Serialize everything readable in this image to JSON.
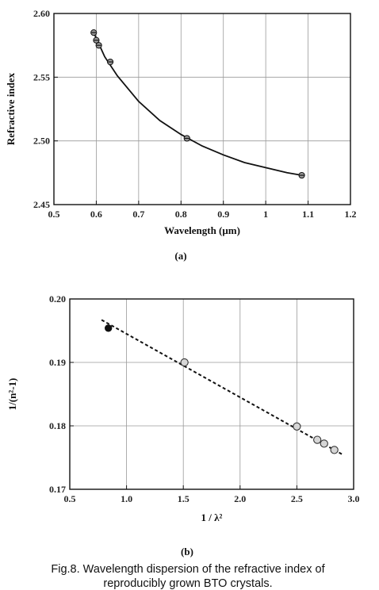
{
  "caption": {
    "line1": "Fig.8. Wavelength dispersion of the refractive index of",
    "line2": "reproducibly grown BTO crystals."
  },
  "chart_data": [
    {
      "type": "line",
      "panel_label": "(a)",
      "xlabel": "Wavelength  (μm)",
      "ylabel": "Refractive index",
      "xlim": [
        0.5,
        1.2
      ],
      "ylim": [
        2.45,
        2.6
      ],
      "x_ticks": [
        "0.5",
        "0.6",
        "0.7",
        "0.8",
        "0.9",
        "1",
        "1.1",
        "1.2"
      ],
      "y_ticks": [
        "2.45",
        "2.50",
        "2.55",
        "2.60"
      ],
      "grid": true,
      "points": [
        {
          "x": 0.594,
          "y": 2.585
        },
        {
          "x": 0.6,
          "y": 2.579
        },
        {
          "x": 0.606,
          "y": 2.575
        },
        {
          "x": 0.633,
          "y": 2.562
        },
        {
          "x": 0.814,
          "y": 2.502
        },
        {
          "x": 1.085,
          "y": 2.473
        }
      ],
      "curve": [
        {
          "x": 0.594,
          "y": 2.585
        },
        {
          "x": 0.62,
          "y": 2.566
        },
        {
          "x": 0.65,
          "y": 2.551
        },
        {
          "x": 0.7,
          "y": 2.531
        },
        {
          "x": 0.75,
          "y": 2.516
        },
        {
          "x": 0.8,
          "y": 2.505
        },
        {
          "x": 0.85,
          "y": 2.496
        },
        {
          "x": 0.9,
          "y": 2.489
        },
        {
          "x": 0.95,
          "y": 2.483
        },
        {
          "x": 1.0,
          "y": 2.479
        },
        {
          "x": 1.05,
          "y": 2.475
        },
        {
          "x": 1.085,
          "y": 2.473
        }
      ]
    },
    {
      "type": "scatter",
      "panel_label": "(b)",
      "xlabel": "1 / λ²",
      "ylabel": "1/(n²-1)",
      "xlim": [
        0.5,
        3.0
      ],
      "ylim": [
        0.17,
        0.2
      ],
      "x_ticks": [
        "0.5",
        "1.0",
        "1.5",
        "2.0",
        "2.5",
        "3.0"
      ],
      "y_ticks": [
        "0.17",
        "0.18",
        "0.19",
        "0.20"
      ],
      "grid": true,
      "points": [
        {
          "x": 0.84,
          "y": 0.1954,
          "filled": true
        },
        {
          "x": 1.51,
          "y": 0.19,
          "filled": false
        },
        {
          "x": 2.5,
          "y": 0.1799,
          "filled": false
        },
        {
          "x": 2.68,
          "y": 0.1778,
          "filled": false
        },
        {
          "x": 2.74,
          "y": 0.1772,
          "filled": false
        },
        {
          "x": 2.83,
          "y": 0.1762,
          "filled": false
        }
      ],
      "fit_line": [
        {
          "x": 0.78,
          "y": 0.1967
        },
        {
          "x": 2.9,
          "y": 0.1755
        }
      ]
    }
  ]
}
